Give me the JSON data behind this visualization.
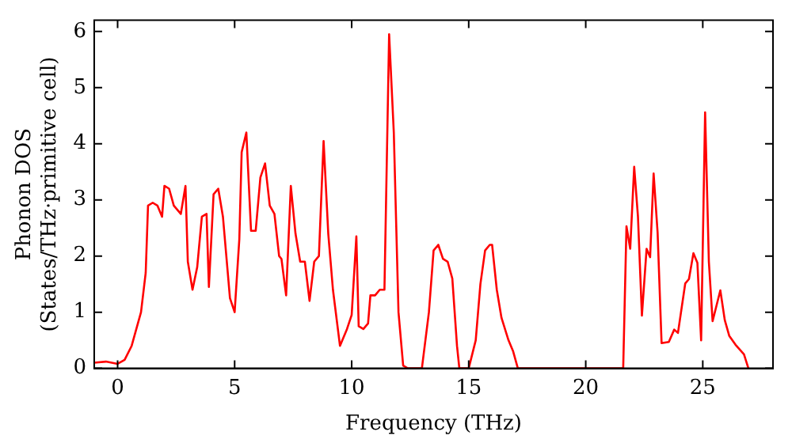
{
  "chart_data": {
    "type": "line",
    "xlabel": "Frequency (THz)",
    "ylabel": "Phonon DOS\n(States/THz·primitive cell)",
    "xlim": [
      -1,
      28
    ],
    "xticks": [
      0,
      5,
      10,
      15,
      20,
      25
    ],
    "ylim": [
      0,
      6.2
    ],
    "yticks": [
      0,
      1,
      2,
      3,
      4,
      5,
      6
    ],
    "grid": false,
    "legend": false,
    "marker": "none",
    "line_style": "solid",
    "series": [
      {
        "color": "#ff0000",
        "x": [
          -1,
          -0.5,
          0,
          0.3,
          0.6,
          1,
          1.2,
          1.3,
          1.5,
          1.7,
          1.9,
          2.0,
          2.2,
          2.4,
          2.7,
          2.9,
          3.0,
          3.2,
          3.4,
          3.6,
          3.8,
          3.9,
          4.1,
          4.3,
          4.5,
          4.8,
          5.0,
          5.2,
          5.3,
          5.5,
          5.7,
          5.9,
          6.1,
          6.3,
          6.5,
          6.7,
          6.9,
          7.0,
          7.2,
          7.4,
          7.6,
          7.8,
          8.0,
          8.2,
          8.4,
          8.6,
          8.8,
          9.0,
          9.2,
          9.5,
          9.8,
          10.0,
          10.2,
          10.3,
          10.5,
          10.7,
          10.8,
          11.0,
          11.2,
          11.4,
          11.6,
          11.8,
          12.0,
          12.2,
          12.4,
          13.0,
          13.3,
          13.5,
          13.7,
          13.9,
          14.1,
          14.3,
          14.5,
          14.6,
          15.0,
          15.3,
          15.5,
          15.7,
          15.9,
          16.0,
          16.2,
          16.4,
          16.7,
          16.9,
          17.1,
          21.6,
          21.74,
          21.9,
          22.07,
          22.23,
          22.4,
          22.6,
          22.75,
          22.9,
          23.07,
          23.24,
          23.55,
          23.78,
          23.94,
          24.25,
          24.41,
          24.6,
          24.77,
          24.93,
          25.1,
          25.26,
          25.42,
          25.75,
          25.94,
          26.13,
          26.4,
          26.76,
          26.95
        ],
        "values": [
          0.1,
          0.12,
          0.08,
          0.15,
          0.4,
          1.0,
          1.7,
          2.9,
          2.95,
          2.9,
          2.7,
          3.25,
          3.2,
          2.9,
          2.75,
          3.25,
          1.9,
          1.4,
          1.8,
          2.7,
          2.75,
          1.45,
          3.1,
          3.2,
          2.7,
          1.25,
          1.0,
          2.3,
          3.85,
          4.2,
          2.45,
          2.45,
          3.4,
          3.65,
          2.9,
          2.75,
          2.0,
          1.95,
          1.3,
          3.25,
          2.4,
          1.9,
          1.9,
          1.2,
          1.9,
          2.0,
          4.05,
          2.4,
          1.4,
          0.4,
          0.7,
          0.95,
          2.35,
          0.75,
          0.7,
          0.8,
          1.3,
          1.3,
          1.4,
          1.4,
          5.95,
          4.2,
          1.0,
          0.05,
          0,
          0,
          1.0,
          2.1,
          2.2,
          1.95,
          1.9,
          1.6,
          0.4,
          0,
          0,
          0.5,
          1.5,
          2.1,
          2.2,
          2.2,
          1.4,
          0.9,
          0.5,
          0.3,
          0,
          0,
          2.53,
          2.13,
          3.59,
          2.71,
          0.94,
          2.13,
          1.98,
          3.47,
          2.42,
          0.45,
          0.47,
          0.69,
          0.63,
          1.51,
          1.59,
          2.05,
          1.88,
          0.5,
          4.56,
          1.9,
          0.84,
          1.39,
          0.86,
          0.58,
          0.42,
          0.25,
          0
        ]
      }
    ]
  }
}
